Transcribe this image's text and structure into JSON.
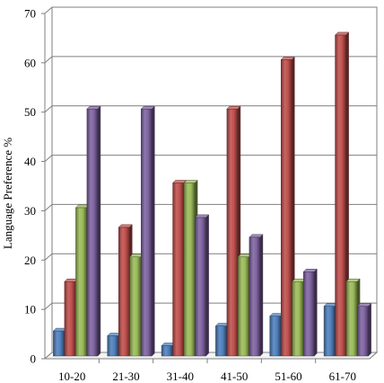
{
  "chart_data": {
    "type": "bar",
    "title": "",
    "xlabel": "",
    "ylabel": "Language Preference %",
    "ylim": [
      0,
      70
    ],
    "yticks": [
      0,
      10,
      20,
      30,
      40,
      50,
      60,
      70
    ],
    "grid": true,
    "legend": "none",
    "categories": [
      "10-20",
      "21-30",
      "31-40",
      "41-50",
      "51-60",
      "61-70"
    ],
    "series": [
      {
        "color": "#4F81BD",
        "values": [
          5,
          4,
          2,
          6,
          8,
          10
        ]
      },
      {
        "color": "#C0504D",
        "values": [
          15,
          26,
          35,
          50,
          60,
          65
        ]
      },
      {
        "color": "#9BBB59",
        "values": [
          30,
          20,
          35,
          20,
          15,
          15
        ]
      },
      {
        "color": "#8064A2",
        "values": [
          50,
          50,
          28,
          24,
          17,
          10
        ]
      }
    ]
  }
}
